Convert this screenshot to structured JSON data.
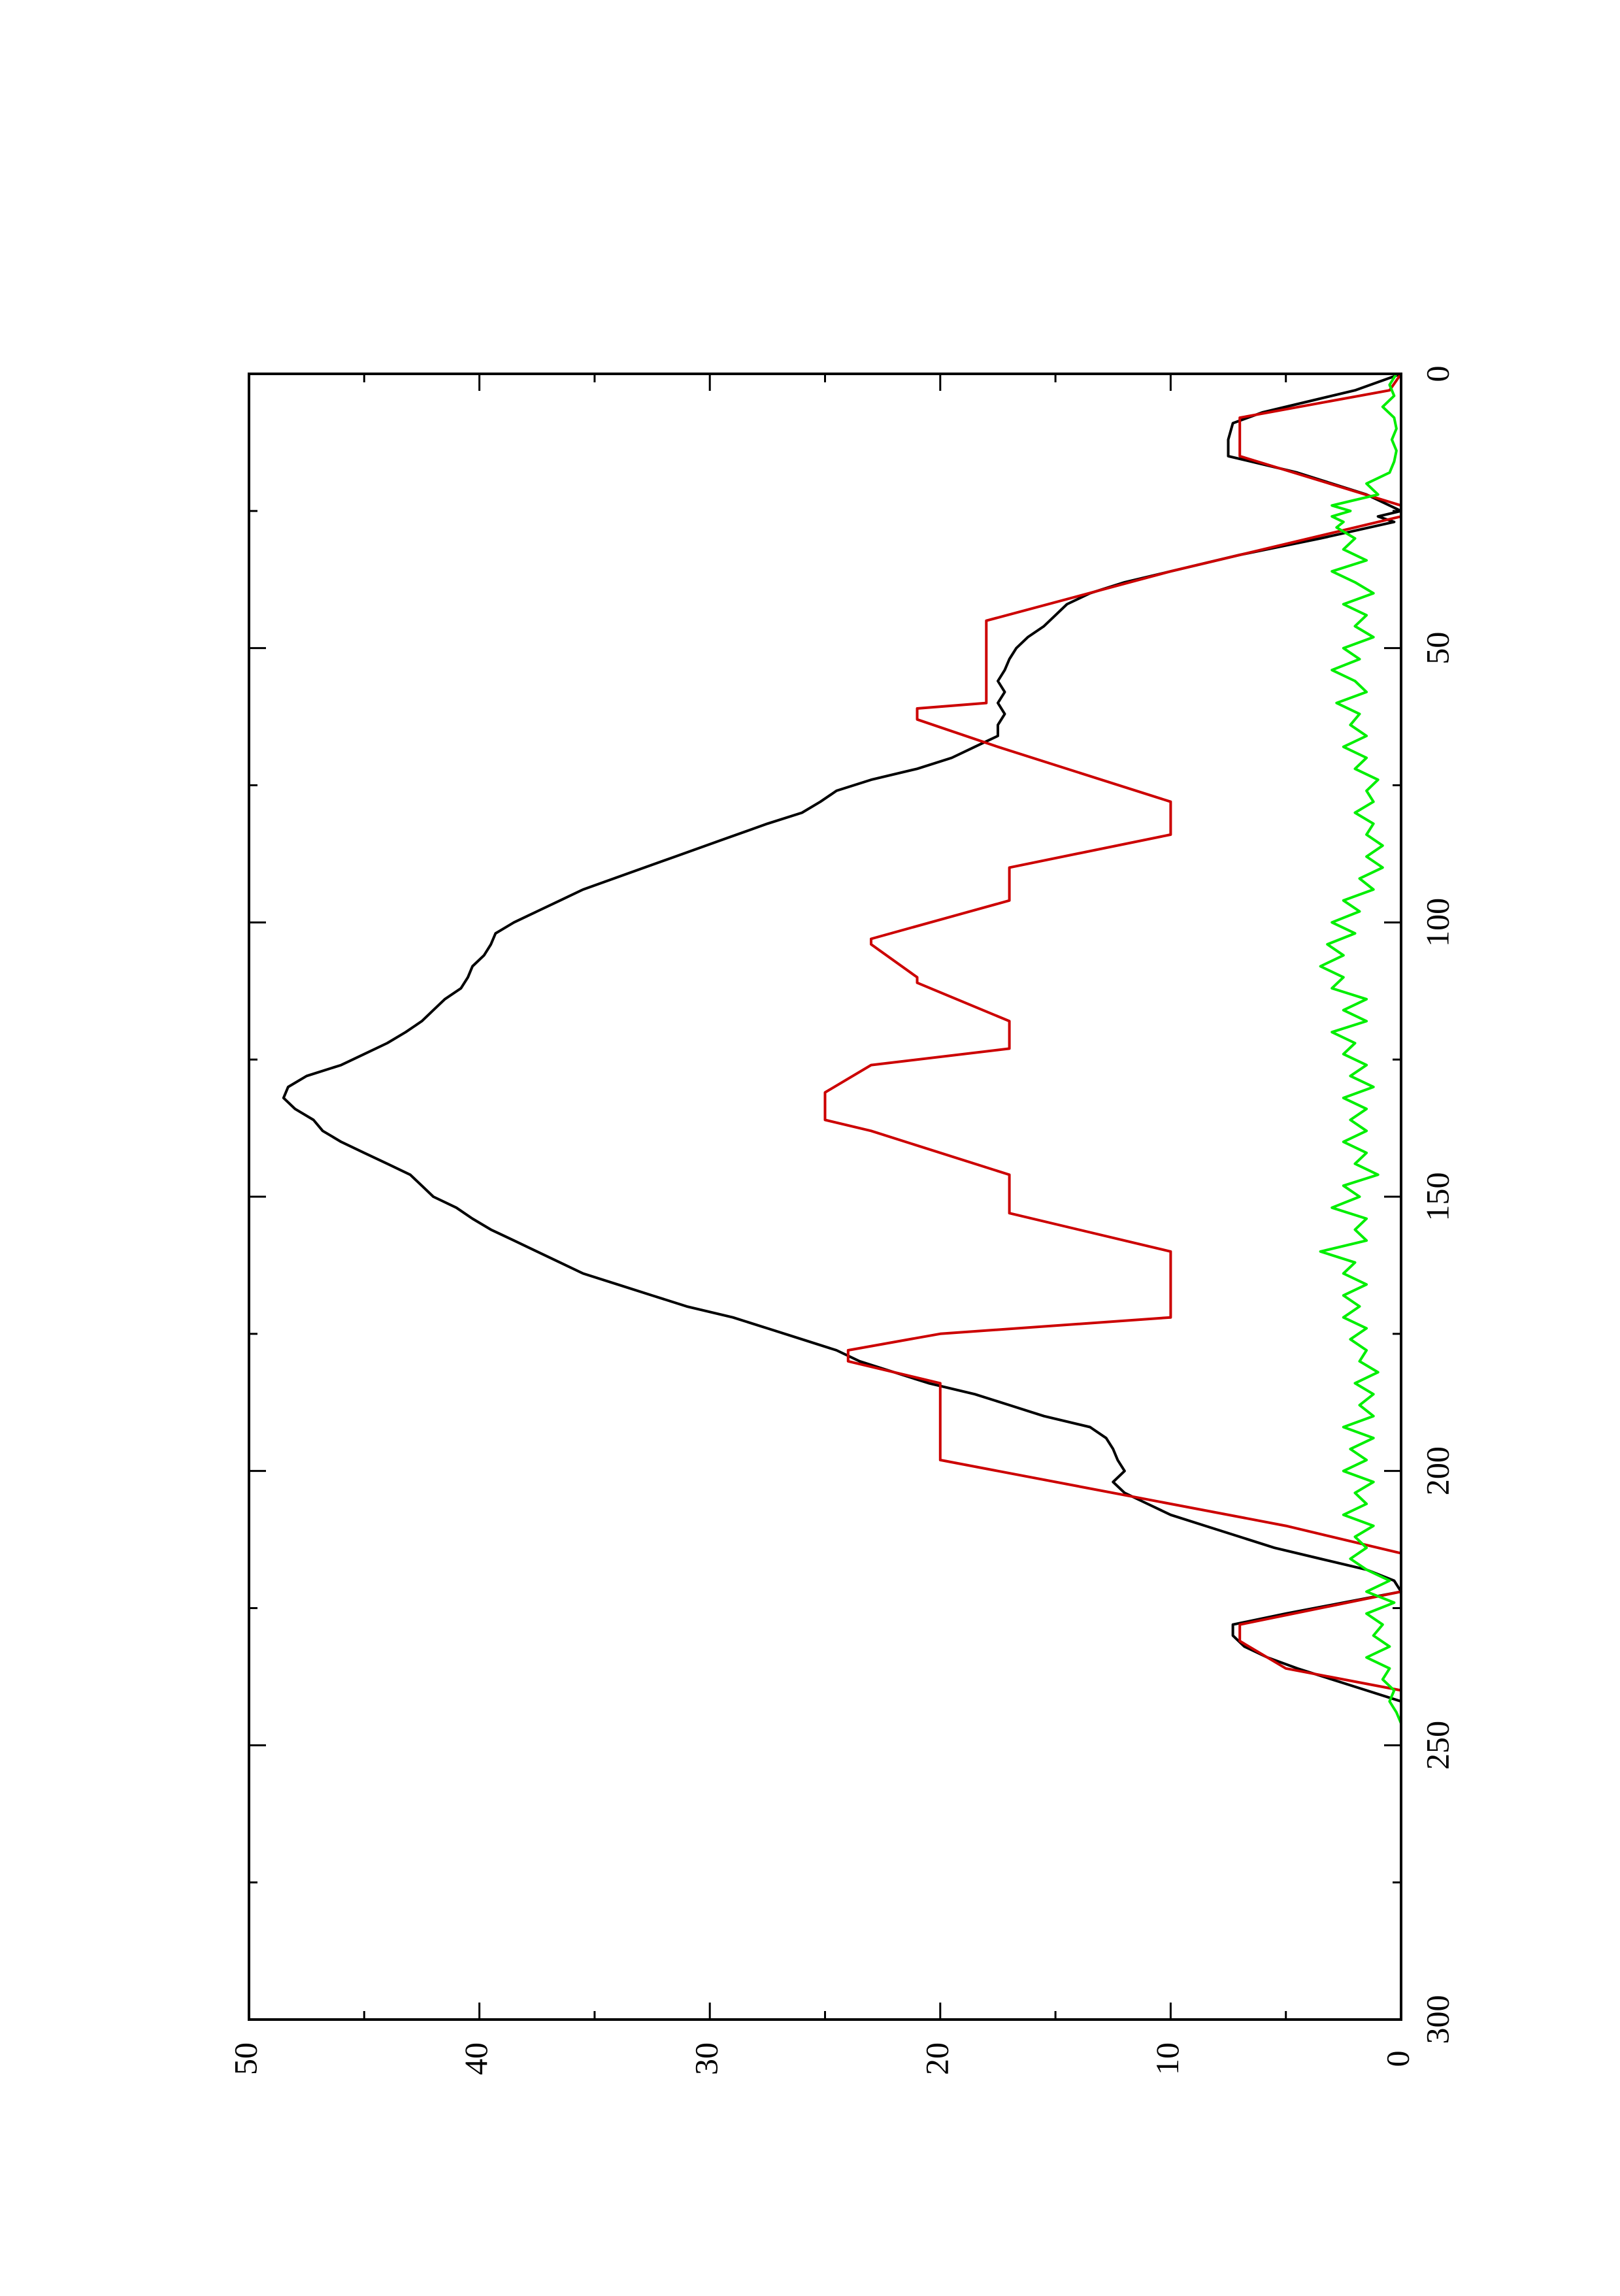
{
  "chart_data": {
    "type": "line",
    "orientation": "rotated-90-ccw",
    "title": "",
    "xlabel": "",
    "ylabel": "",
    "xlim": [
      0,
      300
    ],
    "ylim": [
      0,
      50
    ],
    "x_ticks": [
      0,
      50,
      100,
      150,
      200,
      250,
      300
    ],
    "x_tick_labels": [
      "0",
      "50",
      "100",
      "150",
      "200",
      "250",
      "300"
    ],
    "y_ticks": [
      0,
      10,
      20,
      30,
      40,
      50
    ],
    "y_tick_labels": [
      "0",
      "10",
      "20",
      "30",
      "40",
      "50"
    ],
    "grid": false,
    "legend": "none",
    "series": [
      {
        "color": "#000000",
        "x": [
          0,
          3,
          5,
          7,
          9,
          12,
          15,
          18,
          20,
          22,
          24,
          25,
          26,
          27,
          30,
          33,
          36,
          38,
          40,
          42,
          44,
          46,
          48,
          50,
          52,
          54,
          56,
          58,
          60,
          62,
          64,
          66,
          68,
          70,
          72,
          74,
          76,
          78,
          80,
          82,
          85,
          88,
          91,
          94,
          96,
          98,
          100,
          102,
          104,
          106,
          108,
          110,
          112,
          114,
          116,
          118,
          120,
          122,
          124,
          126,
          128,
          130,
          132,
          134,
          136,
          138,
          140,
          142,
          144,
          146,
          148,
          150,
          152,
          154,
          156,
          158,
          160,
          162,
          164,
          166,
          168,
          170,
          172,
          174,
          176,
          178,
          180,
          182,
          184,
          186,
          188,
          190,
          192,
          194,
          196,
          198,
          200,
          202,
          204,
          206,
          208,
          210,
          212,
          214,
          216,
          218,
          220,
          222,
          224,
          226,
          228,
          230,
          232,
          234,
          236,
          238,
          240,
          242
        ],
        "y": [
          0,
          2,
          4,
          6,
          7.3,
          7.5,
          7.5,
          4.5,
          3,
          1.5,
          0.5,
          0,
          1,
          0.3,
          3.5,
          7,
          10,
          12,
          13.5,
          14.5,
          15,
          15.5,
          16.2,
          16.7,
          17,
          17.2,
          17.5,
          17.2,
          17.5,
          17.2,
          17.5,
          17.5,
          18.5,
          19.5,
          21,
          23,
          24.5,
          25.2,
          26,
          27.5,
          29.5,
          31.5,
          33.5,
          35.5,
          36.5,
          37.5,
          38.5,
          39.3,
          39.5,
          39.8,
          40.3,
          40.5,
          40.8,
          41.5,
          42,
          42.5,
          43.2,
          44,
          45,
          46,
          47.5,
          48.3,
          48.5,
          48,
          47.2,
          46.8,
          46,
          45,
          44,
          43,
          42.5,
          42,
          41,
          40.3,
          39.5,
          38.5,
          37.5,
          36.5,
          35.5,
          34,
          32.5,
          31,
          29,
          27.5,
          26,
          24.5,
          23.5,
          22,
          20.5,
          18.5,
          17,
          15.5,
          13.5,
          12.8,
          12.5,
          12.3,
          12,
          12.5,
          12,
          11,
          10,
          8.5,
          7,
          5.5,
          3.5,
          1.5,
          0.3,
          0,
          2.5,
          5,
          7.3,
          7.3,
          6.8,
          5.8,
          4.5,
          3,
          1.5,
          0
        ]
      },
      {
        "color": "#cc0000",
        "x": [
          0,
          3,
          8,
          15,
          24,
          25,
          26,
          36,
          45,
          60,
          61,
          63,
          68,
          78,
          84,
          90,
          96,
          103,
          104,
          110,
          111,
          118,
          123,
          126,
          131,
          136,
          138,
          146,
          153,
          160,
          172,
          175,
          178,
          180,
          184,
          198,
          206,
          210,
          215,
          218,
          222,
          228,
          231,
          236,
          240
        ],
        "y": [
          0,
          0.5,
          7,
          7,
          0,
          0,
          0,
          10,
          18,
          18,
          21,
          21,
          17.5,
          10,
          10,
          17,
          17,
          23,
          23,
          21,
          21,
          17,
          17,
          23,
          25,
          25,
          23,
          17,
          17,
          10,
          10,
          20,
          24,
          24,
          20,
          20,
          10,
          5,
          0,
          0,
          0,
          7,
          7,
          5,
          0
        ]
      },
      {
        "color": "#00ee00",
        "x": [
          0,
          2,
          4,
          6,
          8,
          10,
          12,
          14,
          16,
          18,
          20,
          22,
          23,
          24,
          25,
          26,
          27,
          28,
          30,
          32,
          34,
          36,
          38,
          40,
          42,
          44,
          46,
          48,
          50,
          52,
          54,
          56,
          58,
          60,
          62,
          64,
          66,
          68,
          70,
          72,
          74,
          76,
          78,
          80,
          82,
          84,
          86,
          88,
          90,
          92,
          94,
          96,
          98,
          100,
          102,
          104,
          106,
          108,
          110,
          112,
          114,
          116,
          118,
          120,
          122,
          124,
          126,
          128,
          130,
          132,
          134,
          136,
          138,
          140,
          142,
          144,
          146,
          148,
          150,
          152,
          154,
          156,
          158,
          160,
          162,
          164,
          166,
          168,
          170,
          172,
          174,
          176,
          178,
          180,
          182,
          184,
          186,
          188,
          190,
          192,
          194,
          196,
          198,
          200,
          202,
          204,
          206,
          208,
          210,
          212,
          214,
          216,
          218,
          220,
          222,
          224,
          226,
          228,
          230,
          232,
          234,
          236,
          238,
          240,
          242,
          244,
          246
        ],
        "y": [
          0.2,
          0.5,
          0.3,
          0.8,
          0.3,
          0.2,
          0.4,
          0.2,
          0.3,
          0.5,
          1.5,
          1,
          2,
          3,
          2.2,
          3,
          2.5,
          2.8,
          2,
          2.5,
          1.5,
          3,
          2,
          1.2,
          2.5,
          1.5,
          2,
          1.2,
          2.5,
          1.8,
          3,
          2,
          1.5,
          2.8,
          1.8,
          2.2,
          1.5,
          2.5,
          1.5,
          2,
          1,
          1.5,
          1.2,
          2,
          1.2,
          1.5,
          0.8,
          1.5,
          0.8,
          1.8,
          1.2,
          2.5,
          1.8,
          3,
          2,
          3.2,
          2.5,
          3.5,
          2.5,
          3,
          1.5,
          2.5,
          1.5,
          3,
          2,
          2.5,
          1.5,
          2.2,
          1.2,
          2.5,
          1.5,
          2.2,
          1.5,
          2.5,
          1.5,
          2,
          1,
          2.5,
          1.8,
          3,
          1.5,
          2,
          1.5,
          3.5,
          2,
          2.5,
          1.5,
          2.5,
          1.8,
          2.5,
          1.5,
          2.2,
          1.5,
          1.8,
          1,
          2,
          1.2,
          1.8,
          1.2,
          2.5,
          1.2,
          2.2,
          1.5,
          2.5,
          1.2,
          2,
          1.5,
          2.5,
          1.2,
          2,
          1.5,
          2.2,
          1.5,
          0.5,
          1.5,
          0.3,
          1.5,
          0.8,
          1.2,
          0.5,
          1.5,
          0.5,
          0.8,
          0.3,
          0.5,
          0.2,
          0
        ]
      }
    ]
  }
}
